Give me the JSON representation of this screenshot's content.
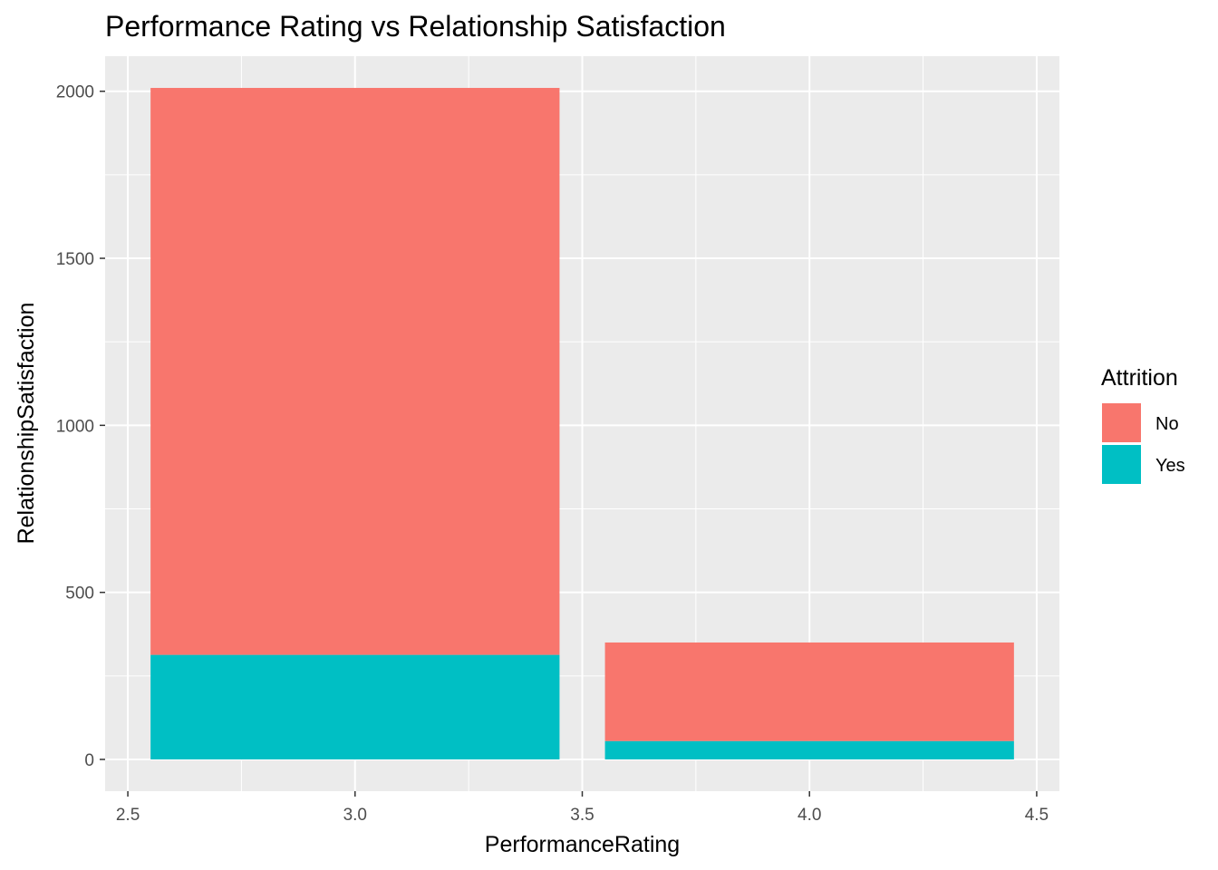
{
  "chart_data": {
    "type": "bar",
    "stacked": true,
    "title": "Performance Rating vs Relationship Satisfaction",
    "xlabel": "PerformanceRating",
    "ylabel": "RelationshipSatisfaction",
    "xlim": [
      2.45,
      4.55
    ],
    "ylim": [
      -95,
      2105
    ],
    "x_ticks": [
      2.5,
      3.0,
      3.5,
      4.0,
      4.5
    ],
    "x_tick_labels": [
      "2.5",
      "3.0",
      "3.5",
      "4.0",
      "4.5"
    ],
    "y_ticks": [
      0,
      500,
      1000,
      1500,
      2000
    ],
    "y_tick_labels": [
      "0",
      "500",
      "1000",
      "1500",
      "2000"
    ],
    "bar_width": 0.9,
    "categories": [
      3,
      4
    ],
    "series": [
      {
        "name": "Yes",
        "color": "#00BFC4",
        "values": [
          313,
          55
        ]
      },
      {
        "name": "No",
        "color": "#F8766D",
        "values": [
          1697,
          295
        ]
      }
    ],
    "legend": {
      "title": "Attrition",
      "position": "right",
      "items": [
        {
          "label": "No",
          "color": "#F8766D"
        },
        {
          "label": "Yes",
          "color": "#00BFC4"
        }
      ]
    },
    "grid": true,
    "panel_background": "#EBEBEB",
    "grid_color": "#FFFFFF"
  }
}
